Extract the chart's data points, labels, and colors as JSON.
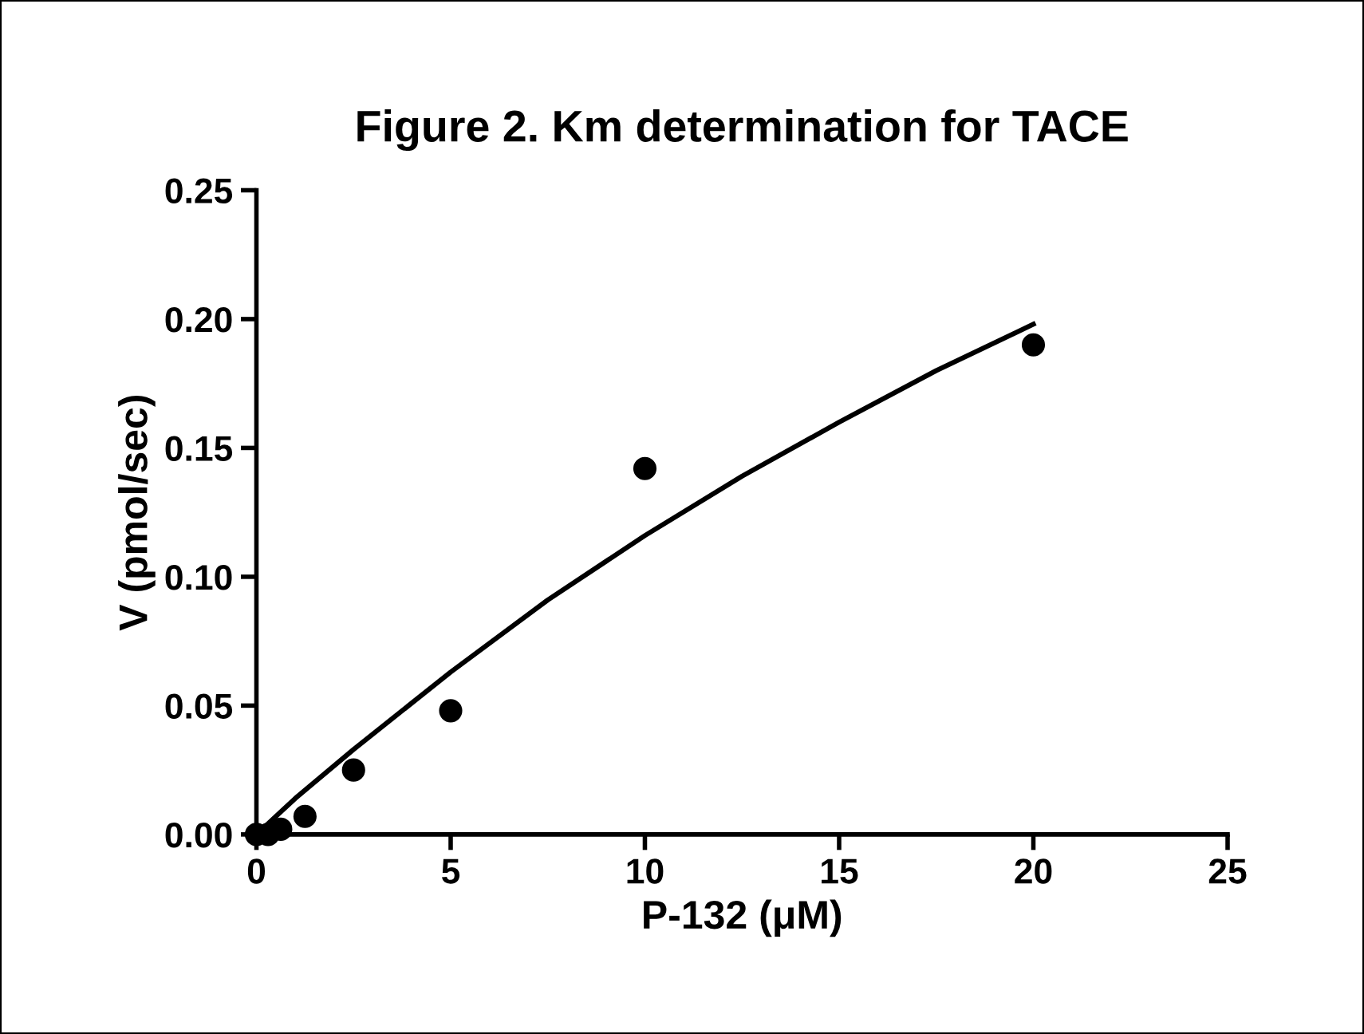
{
  "chart_data": {
    "type": "scatter",
    "title": "Figure 2. Km determination for TACE",
    "xlabel": "P-132 (μM)",
    "ylabel": "V (pmol/sec)",
    "series": [
      {
        "color": "#000000",
        "marker": "circle",
        "x": [
          0,
          0.3,
          0.625,
          1.25,
          2.5,
          5,
          10,
          20
        ],
        "values": [
          0,
          0,
          0.002,
          0.007,
          0.025,
          0.048,
          0.142,
          0.19
        ]
      },
      {
        "type": "line",
        "color": "#000000",
        "marker": "none",
        "line_style": "solid",
        "x": [
          0,
          1,
          2.5,
          5,
          7.5,
          10,
          12.5,
          15,
          17.5,
          20
        ],
        "values": [
          0,
          0.014,
          0.033,
          0.063,
          0.091,
          0.116,
          0.139,
          0.16,
          0.18,
          0.198
        ]
      }
    ],
    "xlim": [
      0,
      25
    ],
    "xticks": [
      0,
      5,
      10,
      15,
      20,
      25
    ],
    "ylim": [
      0,
      0.25
    ],
    "yticks": [
      {
        "value": 0,
        "label": "0.00"
      },
      {
        "value": 0.05,
        "label": "0.05"
      },
      {
        "value": 0.1,
        "label": "0.10"
      },
      {
        "value": 0.15,
        "label": "0.15"
      },
      {
        "value": 0.2,
        "label": "0.20"
      },
      {
        "value": 0.25,
        "label": "0.25"
      }
    ],
    "grid": false,
    "legend": false
  }
}
